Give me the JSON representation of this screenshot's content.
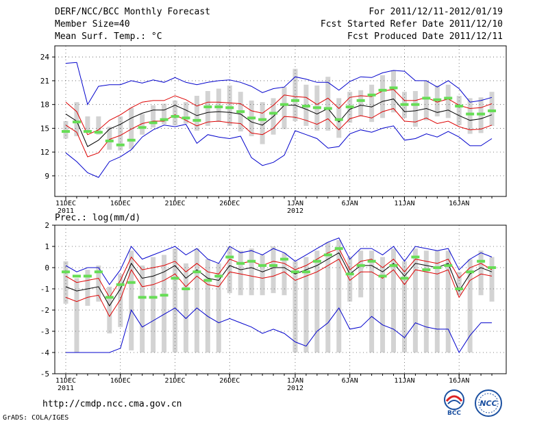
{
  "header": {
    "title": "DERF/NCC/BCC Monthly Forecast",
    "member_size": "Member Size=40",
    "variable": "Mean Surf. Temp.: °C",
    "period": "For 2011/12/11-2012/01/19",
    "started": "Fcst Started Refer Date 2011/12/10",
    "produced": "Fcst Produced Date 2011/12/11"
  },
  "footer": {
    "url": "http://cmdp.ncc.cma.gov.cn",
    "credit": "GrADS: COLA/IGES",
    "logo_bcc": "BCC",
    "logo_ncc": "NCC"
  },
  "colors": {
    "box": "#d3d3d3",
    "median": "#66dd55",
    "mean": "#000000",
    "sd": "#dd0000",
    "range": "#0000cc",
    "grid": "#555555"
  },
  "chart_data": [
    {
      "type": "line",
      "title": "Mean Surf. Temp.: °C",
      "x": [
        "11DEC\n2011",
        "12DEC",
        "13DEC",
        "14DEC",
        "15DEC",
        "16DEC",
        "17DEC",
        "18DEC",
        "19DEC",
        "20DEC",
        "21DEC",
        "22DEC",
        "23DEC",
        "24DEC",
        "25DEC",
        "26DEC",
        "27DEC",
        "28DEC",
        "29DEC",
        "30DEC",
        "31DEC",
        "1JAN\n2012",
        "2JAN",
        "3JAN",
        "4JAN",
        "5JAN",
        "6JAN",
        "7JAN",
        "8JAN",
        "9JAN",
        "10JAN",
        "11JAN",
        "12JAN",
        "13JAN",
        "14JAN",
        "15JAN",
        "16JAN",
        "17JAN",
        "18JAN",
        "19JAN"
      ],
      "xticks": [
        "11DEC\n2011",
        "16DEC",
        "21DEC",
        "26DEC",
        "1JAN\n2012",
        "6JAN",
        "11JAN",
        "16JAN"
      ],
      "yticks": [
        9,
        12,
        15,
        18,
        21,
        24
      ],
      "ylim": [
        6.4,
        25.4
      ],
      "series": [
        {
          "name": "max",
          "values": [
            23.2,
            23.3,
            18.0,
            20.3,
            20.5,
            20.5,
            21.0,
            20.7,
            21.1,
            20.8,
            21.4,
            20.8,
            20.5,
            20.8,
            21.0,
            21.1,
            20.8,
            20.3,
            19.5,
            20.0,
            20.2,
            21.5,
            21.2,
            20.8,
            20.8,
            19.8,
            20.9,
            21.5,
            21.4,
            22.0,
            22.3,
            22.2,
            21.0,
            21.0,
            20.2,
            21.0,
            20.0,
            18.3,
            18.5,
            18.9
          ]
        },
        {
          "name": "mean_plus_sd",
          "values": [
            18.3,
            17.1,
            14.2,
            14.8,
            16.0,
            16.7,
            17.6,
            18.3,
            18.5,
            18.5,
            19.1,
            18.6,
            17.8,
            18.3,
            18.3,
            18.2,
            18.1,
            17.2,
            16.9,
            17.9,
            19.2,
            19.0,
            18.9,
            18.0,
            18.8,
            17.5,
            18.9,
            19.1,
            19.0,
            19.7,
            19.9,
            18.5,
            18.5,
            18.9,
            18.3,
            18.7,
            17.9,
            17.5,
            17.6,
            18.1
          ]
        },
        {
          "name": "mean",
          "values": [
            16.8,
            15.9,
            12.7,
            13.5,
            14.9,
            15.5,
            16.3,
            16.9,
            17.3,
            17.3,
            17.9,
            17.3,
            16.6,
            17.0,
            17.1,
            17.0,
            16.8,
            15.8,
            15.4,
            16.5,
            17.9,
            17.9,
            17.4,
            16.8,
            17.5,
            15.8,
            17.4,
            17.9,
            17.7,
            18.4,
            18.7,
            17.1,
            17.2,
            17.5,
            17.0,
            17.3,
            16.6,
            16.0,
            16.2,
            16.7
          ]
        },
        {
          "name": "mean_minus_sd",
          "values": [
            15.4,
            14.5,
            11.4,
            11.9,
            13.6,
            14.1,
            14.9,
            15.6,
            15.9,
            15.9,
            16.7,
            16.0,
            15.3,
            15.8,
            15.9,
            15.7,
            15.6,
            14.4,
            14.2,
            15.0,
            16.5,
            16.4,
            16.0,
            15.5,
            16.2,
            14.8,
            16.2,
            16.6,
            16.3,
            17.1,
            17.5,
            15.9,
            15.8,
            16.3,
            15.6,
            15.9,
            15.2,
            14.8,
            14.9,
            15.4
          ]
        },
        {
          "name": "min",
          "values": [
            11.9,
            10.8,
            9.4,
            8.8,
            10.8,
            11.4,
            12.3,
            13.9,
            14.8,
            15.4,
            15.2,
            15.5,
            13.1,
            14.2,
            13.9,
            13.7,
            14.0,
            11.3,
            10.3,
            10.7,
            11.6,
            14.7,
            14.2,
            13.7,
            12.5,
            12.7,
            14.3,
            14.8,
            14.5,
            15.0,
            15.3,
            13.5,
            13.7,
            14.3,
            13.9,
            14.6,
            13.9,
            12.8,
            12.8,
            13.7
          ]
        },
        {
          "name": "median",
          "values": [
            14.6,
            15.8,
            14.6,
            14.5,
            13.4,
            12.9,
            13.5,
            15.1,
            15.7,
            16.1,
            16.5,
            16.3,
            16.0,
            17.7,
            17.7,
            17.6,
            17.1,
            16.3,
            16.1,
            16.9,
            18.0,
            18.5,
            17.8,
            17.6,
            17.5,
            16.1,
            17.7,
            18.5,
            19.2,
            19.8,
            20.1,
            18.0,
            18.0,
            18.8,
            18.6,
            18.8,
            17.8,
            16.8,
            16.8,
            17.2
          ]
        },
        {
          "name": "box_top",
          "values": [
            15.9,
            18.3,
            16.5,
            16.5,
            15.2,
            16.5,
            17.6,
            16.8,
            17.9,
            18.1,
            18.5,
            18.3,
            19.1,
            19.7,
            20.0,
            20.4,
            19.6,
            18.5,
            18.3,
            18.8,
            20.2,
            22.5,
            20.5,
            20.4,
            21.5,
            18.8,
            19.6,
            19.8,
            20.5,
            21.7,
            22.3,
            19.6,
            19.7,
            21.0,
            20.4,
            20.5,
            19.1,
            18.8,
            18.9,
            19.6
          ]
        },
        {
          "name": "box_bottom",
          "values": [
            13.7,
            14.0,
            14.5,
            14.2,
            12.3,
            12.2,
            12.4,
            14.2,
            15.1,
            15.5,
            15.4,
            15.6,
            14.7,
            15.3,
            15.8,
            15.3,
            14.6,
            14.0,
            13.0,
            14.2,
            14.9,
            15.9,
            15.3,
            14.7,
            14.7,
            13.8,
            15.7,
            16.5,
            15.8,
            16.3,
            17.0,
            16.3,
            15.2,
            16.0,
            16.5,
            16.3,
            15.4,
            14.3,
            14.4,
            15.3
          ]
        }
      ]
    },
    {
      "type": "line",
      "title": "Prec.: log(mm/d)",
      "x": [
        "11DEC\n2011",
        "12DEC",
        "13DEC",
        "14DEC",
        "15DEC",
        "16DEC",
        "17DEC",
        "18DEC",
        "19DEC",
        "20DEC",
        "21DEC",
        "22DEC",
        "23DEC",
        "24DEC",
        "25DEC",
        "26DEC",
        "27DEC",
        "28DEC",
        "29DEC",
        "30DEC",
        "31DEC",
        "1JAN\n2012",
        "2JAN",
        "3JAN",
        "4JAN",
        "5JAN",
        "6JAN",
        "7JAN",
        "8JAN",
        "9JAN",
        "10JAN",
        "11JAN",
        "12JAN",
        "13JAN",
        "14JAN",
        "15JAN",
        "16JAN",
        "17JAN",
        "18JAN",
        "19JAN"
      ],
      "xticks": [
        "11DEC\n2011",
        "16DEC",
        "21DEC",
        "26DEC",
        "1JAN\n2012",
        "6JAN",
        "11JAN",
        "16JAN"
      ],
      "yticks": [
        -5,
        -4,
        -3,
        -2,
        -1,
        0,
        1,
        2
      ],
      "ylim": [
        -5,
        2
      ],
      "series": [
        {
          "name": "max",
          "values": [
            0.1,
            -0.2,
            0.0,
            0.0,
            -0.8,
            -0.1,
            1.0,
            0.4,
            0.6,
            0.8,
            1.0,
            0.6,
            0.9,
            0.4,
            0.2,
            1.0,
            0.7,
            0.8,
            0.6,
            0.9,
            0.7,
            0.3,
            0.6,
            0.9,
            1.2,
            1.4,
            0.4,
            0.9,
            0.9,
            0.6,
            1.0,
            0.3,
            1.0,
            0.9,
            0.8,
            0.9,
            -0.1,
            0.4,
            0.7,
            0.5
          ]
        },
        {
          "name": "mean_plus_sd",
          "values": [
            -0.4,
            -0.7,
            -0.6,
            -0.5,
            -1.4,
            -0.6,
            0.5,
            -0.1,
            0.0,
            0.1,
            0.3,
            -0.2,
            0.2,
            -0.2,
            -0.3,
            0.4,
            0.2,
            0.3,
            0.1,
            0.3,
            0.2,
            -0.1,
            0.1,
            0.4,
            0.7,
            0.9,
            -0.1,
            0.3,
            0.4,
            0.0,
            0.4,
            -0.2,
            0.4,
            0.3,
            0.2,
            0.4,
            -0.5,
            0.0,
            0.2,
            -0.1
          ]
        },
        {
          "name": "mean",
          "values": [
            -0.9,
            -1.1,
            -1.0,
            -0.9,
            -1.8,
            -1.0,
            0.2,
            -0.5,
            -0.4,
            -0.2,
            0.1,
            -0.5,
            -0.1,
            -0.5,
            -0.6,
            0.1,
            -0.1,
            0.0,
            -0.2,
            0.0,
            0.0,
            -0.3,
            -0.1,
            0.1,
            0.4,
            0.7,
            -0.3,
            0.1,
            0.1,
            -0.2,
            0.2,
            -0.4,
            0.2,
            0.1,
            0.0,
            0.2,
            -1.1,
            -0.3,
            0.0,
            -0.2
          ]
        },
        {
          "name": "mean_minus_sd",
          "values": [
            -1.4,
            -1.6,
            -1.4,
            -1.3,
            -2.3,
            -1.5,
            -0.1,
            -0.9,
            -0.8,
            -0.6,
            -0.3,
            -0.9,
            -0.4,
            -0.8,
            -0.9,
            -0.2,
            -0.3,
            -0.4,
            -0.5,
            -0.4,
            -0.2,
            -0.6,
            -0.4,
            -0.2,
            0.1,
            0.4,
            -0.6,
            -0.2,
            -0.2,
            -0.5,
            -0.1,
            -0.8,
            -0.1,
            -0.2,
            -0.3,
            -0.1,
            -1.4,
            -0.6,
            -0.3,
            -0.4
          ]
        },
        {
          "name": "min",
          "values": [
            -4.0,
            -4.0,
            -4.0,
            -4.0,
            -4.0,
            -3.8,
            -2.0,
            -2.8,
            -2.5,
            -2.2,
            -1.9,
            -2.4,
            -1.9,
            -2.3,
            -2.6,
            -2.4,
            -2.6,
            -2.8,
            -3.1,
            -2.9,
            -3.1,
            -3.5,
            -3.7,
            -3.0,
            -2.6,
            -1.9,
            -2.9,
            -2.8,
            -2.3,
            -2.7,
            -2.9,
            -3.3,
            -2.6,
            -2.8,
            -2.9,
            -2.9,
            -4.0,
            -3.2,
            -2.6,
            -2.6
          ]
        },
        {
          "name": "median",
          "values": [
            -0.2,
            -0.4,
            -0.4,
            -0.2,
            -1.4,
            -0.8,
            -0.7,
            -1.4,
            -1.4,
            -1.3,
            -0.5,
            -1.0,
            -0.2,
            -0.6,
            -0.4,
            0.5,
            0.2,
            0.3,
            0.1,
            0.1,
            0.4,
            -0.2,
            -0.2,
            0.3,
            0.6,
            0.9,
            -0.3,
            0.1,
            0.3,
            -0.4,
            0.1,
            -0.5,
            0.5,
            -0.1,
            0.0,
            0.1,
            -1.0,
            -0.2,
            0.3,
            0.0
          ]
        },
        {
          "name": "box_top",
          "values": [
            0.3,
            -0.5,
            -0.1,
            0.1,
            -0.9,
            -0.3,
            0.8,
            0.1,
            0.5,
            0.6,
            0.9,
            0.2,
            0.9,
            0.4,
            0.2,
            1.0,
            0.8,
            0.9,
            0.6,
            1.0,
            0.7,
            0.3,
            0.5,
            0.8,
            1.2,
            1.3,
            0.5,
            0.8,
            0.8,
            0.5,
            0.9,
            0.3,
            0.9,
            0.8,
            0.8,
            0.8,
            -0.2,
            0.4,
            0.8,
            0.5
          ]
        },
        {
          "name": "box_bottom",
          "values": [
            -1.7,
            -4.0,
            -1.8,
            -1.6,
            -3.1,
            -2.8,
            -3.9,
            -4.0,
            -4.0,
            -4.0,
            -4.0,
            -4.0,
            -4.0,
            -4.0,
            -4.0,
            -1.2,
            -1.3,
            -1.3,
            -1.3,
            -1.2,
            -1.3,
            -4.0,
            -4.0,
            -4.0,
            -4.0,
            -4.0,
            -1.6,
            -1.4,
            -4.0,
            -4.0,
            -4.0,
            -4.0,
            -4.0,
            -4.0,
            -4.0,
            -4.0,
            -1.3,
            -4.0,
            -1.3,
            -1.6
          ]
        }
      ]
    }
  ]
}
